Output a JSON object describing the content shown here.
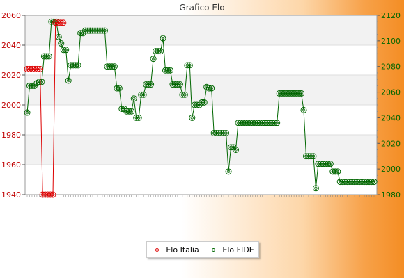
{
  "chart_data": {
    "type": "line",
    "title": "Grafico Elo",
    "left_axis": {
      "ylim": [
        1940,
        2060
      ],
      "ticks": [
        1940,
        1960,
        1980,
        2000,
        2020,
        2040,
        2060
      ]
    },
    "right_axis": {
      "ylim": [
        1980,
        2120
      ],
      "ticks": [
        1980,
        2000,
        2020,
        2040,
        2060,
        2080,
        2100,
        2120
      ]
    },
    "grid": true,
    "legend_position": "bottom-center",
    "colors": {
      "Elo Italia": "#dd0000",
      "Elo FIDE": "#006600"
    },
    "series": [
      {
        "name": "Elo Italia",
        "axis": "left",
        "values": [
          2024,
          2024,
          2024,
          2024,
          2024,
          2024,
          1940,
          1940,
          1940,
          1940,
          1940,
          2055,
          2055,
          2055,
          2055
        ]
      },
      {
        "name": "Elo FIDE",
        "axis": "right",
        "values": [
          2044,
          2065,
          2065,
          2065,
          2067,
          2068,
          2068,
          2088,
          2088,
          2088,
          2115,
          2115,
          2115,
          2103,
          2098,
          2093,
          2093,
          2069,
          2081,
          2081,
          2081,
          2081,
          2106,
          2106,
          2108,
          2108,
          2108,
          2108,
          2108,
          2108,
          2108,
          2108,
          2108,
          2080,
          2080,
          2080,
          2080,
          2063,
          2063,
          2047,
          2047,
          2045,
          2045,
          2045,
          2055,
          2040,
          2040,
          2058,
          2058,
          2066,
          2066,
          2066,
          2086,
          2092,
          2092,
          2092,
          2102,
          2077,
          2077,
          2077,
          2066,
          2066,
          2066,
          2066,
          2058,
          2058,
          2081,
          2081,
          2040,
          2050,
          2050,
          2050,
          2052,
          2052,
          2064,
          2063,
          2063,
          2028,
          2028,
          2028,
          2028,
          2028,
          2028,
          1998,
          2017,
          2017,
          2015,
          2036,
          2036,
          2036,
          2036,
          2036,
          2036,
          2036,
          2036,
          2036,
          2036,
          2036,
          2036,
          2036,
          2036,
          2036,
          2036,
          2036,
          2059,
          2059,
          2059,
          2059,
          2059,
          2059,
          2059,
          2059,
          2059,
          2059,
          2046,
          2010,
          2010,
          2010,
          2010,
          1985,
          2004,
          2004,
          2004,
          2004,
          2004,
          2004,
          1998,
          1998,
          1998,
          1990,
          1990,
          1990,
          1990,
          1990,
          1990,
          1990,
          1990,
          1990,
          1990,
          1990,
          1990,
          1990,
          1990,
          1990
        ]
      }
    ]
  }
}
